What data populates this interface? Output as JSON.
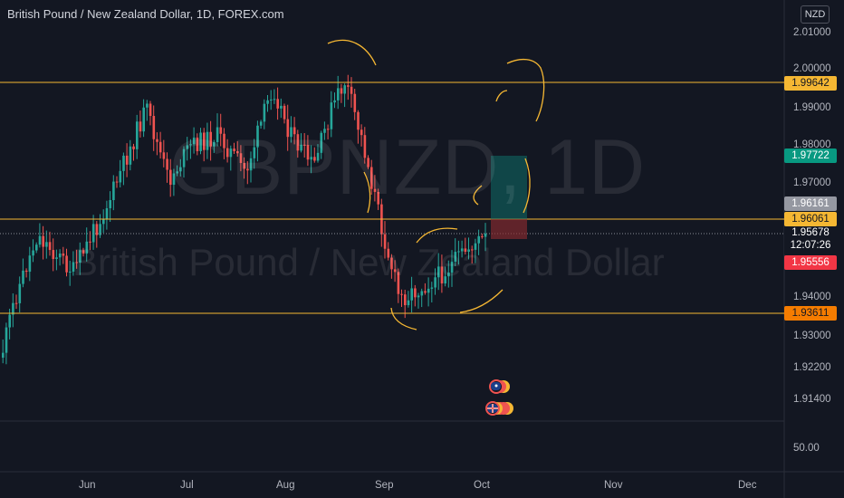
{
  "title": "British Pound / New Zealand Dollar, 1D, FOREX.com",
  "currency_badge": "NZD",
  "watermark": {
    "symbol": "GBPNZD, 1D",
    "name": "British Pound / New Zealand Dollar"
  },
  "price_axis": {
    "ticks": [
      "2.01000",
      "2.00000",
      "1.99000",
      "1.98000",
      "1.97000",
      "1.94000",
      "1.93000",
      "1.92200",
      "1.91400",
      "50.00"
    ]
  },
  "price_tags": {
    "resistance": {
      "label": "1.99642",
      "color": "#f5b733"
    },
    "target": {
      "label": "1.97722",
      "color": "#089981"
    },
    "prev_close": {
      "label": "1.96161",
      "color": "#9598a1"
    },
    "entry_level": {
      "label": "1.96061",
      "color": "#f5b733"
    },
    "current": {
      "price": "1.95678",
      "countdown": "12:07:26"
    },
    "stop": {
      "label": "1.95556",
      "color": "#f23645"
    },
    "support": {
      "label": "1.93611",
      "color": "#f57c00"
    }
  },
  "time_axis": {
    "labels": [
      "Jun",
      "Jul",
      "Aug",
      "Sep",
      "Oct",
      "Nov",
      "Dec"
    ]
  },
  "colors": {
    "background": "#131722",
    "up": "#26a69a",
    "down": "#ef5350",
    "level_line": "#f5b733",
    "annotation": "#f5b733"
  },
  "icons": {
    "gbp_flag": "uk-flag-icon",
    "nzd_flag": "nz-flag-icon"
  }
}
